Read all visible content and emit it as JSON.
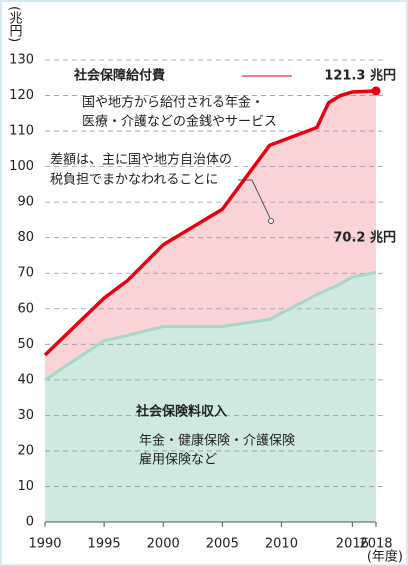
{
  "chart_data": {
    "type": "area",
    "y_unit": "(兆円)",
    "x_unit": "(年度)",
    "x": [
      1990,
      1995,
      1997,
      2000,
      2005,
      2009,
      2013,
      2014,
      2015,
      2016,
      2018
    ],
    "series": [
      {
        "name": "社会保障給付費",
        "color": "#e60012",
        "fill": "#f9d3d6",
        "values": [
          47,
          63,
          68,
          78,
          88,
          106,
          111,
          118,
          120,
          121,
          121.3
        ],
        "end_label": "121.3 兆円"
      },
      {
        "name": "社会保険料収入",
        "color": "#a5d8c7",
        "fill": "#cfe9e0",
        "label_color": "#2a8fc9",
        "values": [
          40,
          51,
          52.5,
          55,
          55,
          57,
          64,
          65.5,
          67,
          69,
          70.2
        ],
        "end_label": "70.2 兆円"
      }
    ],
    "annotations": {
      "benefit_note": [
        "国や地方から給付される年金・",
        "医療・介護などの金銭やサービス"
      ],
      "gap_note": [
        "差額は、主に国や地方自治体の",
        "税負担でまかなわれることに"
      ],
      "premium_note": [
        "年金・健康保険・介護保険",
        "雇用保険など"
      ]
    },
    "xlim": [
      1990,
      2018
    ],
    "xticks": [
      1990,
      1995,
      2000,
      2005,
      2010,
      2016,
      2018
    ],
    "ylim": [
      0,
      130
    ],
    "yticks": [
      0,
      10,
      20,
      30,
      40,
      50,
      60,
      70,
      80,
      90,
      100,
      110,
      120,
      130
    ],
    "grid": true
  }
}
